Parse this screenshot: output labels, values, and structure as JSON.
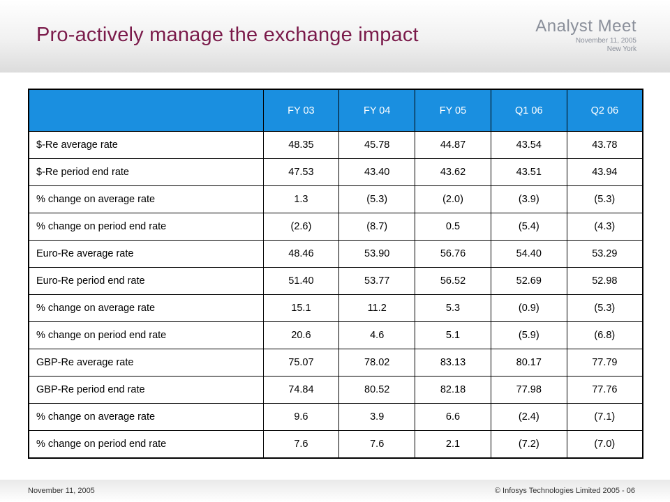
{
  "slide": {
    "title": "Pro-actively manage the exchange impact"
  },
  "brand": {
    "name": "Analyst Meet",
    "date": "November 11, 2005",
    "place": "New York"
  },
  "table": {
    "columns": [
      "",
      "FY 03",
      "FY 04",
      "FY 05",
      "Q1 06",
      "Q2 06"
    ],
    "rows": [
      {
        "label": "$-Re average rate",
        "values": [
          "48.35",
          "45.78",
          "44.87",
          "43.54",
          "43.78"
        ]
      },
      {
        "label": "$-Re period end rate",
        "values": [
          "47.53",
          "43.40",
          "43.62",
          "43.51",
          "43.94"
        ]
      },
      {
        "label": "% change on average rate",
        "values": [
          "1.3",
          "(5.3)",
          "(2.0)",
          "(3.9)",
          "(5.3)"
        ]
      },
      {
        "label": "% change on period end rate",
        "values": [
          "(2.6)",
          "(8.7)",
          "0.5",
          "(5.4)",
          "(4.3)"
        ]
      },
      {
        "label": "Euro-Re average rate",
        "values": [
          "48.46",
          "53.90",
          "56.76",
          "54.40",
          "53.29"
        ]
      },
      {
        "label": "Euro-Re period end rate",
        "values": [
          "51.40",
          "53.77",
          "56.52",
          "52.69",
          "52.98"
        ]
      },
      {
        "label": "% change on average rate",
        "values": [
          "15.1",
          "11.2",
          "5.3",
          "(0.9)",
          "(5.3)"
        ]
      },
      {
        "label": "% change on period end rate",
        "values": [
          "20.6",
          "4.6",
          "5.1",
          "(5.9)",
          "(6.8)"
        ]
      },
      {
        "label": "GBP-Re average rate",
        "values": [
          "75.07",
          "78.02",
          "83.13",
          "80.17",
          "77.79"
        ]
      },
      {
        "label": "GBP-Re period end rate",
        "values": [
          "74.84",
          "80.52",
          "82.18",
          "77.98",
          "77.76"
        ]
      },
      {
        "label": "% change on average rate",
        "values": [
          "9.6",
          "3.9",
          "6.6",
          "(2.4)",
          "(7.1)"
        ]
      },
      {
        "label": "% change on period end rate",
        "values": [
          "7.6",
          "7.6",
          "2.1",
          "(7.2)",
          "(7.0)"
        ]
      }
    ]
  },
  "footer": {
    "date": "November 11, 2005",
    "copyright": "© Infosys Technologies Limited 2005 - 06"
  },
  "colors": {
    "title": "#7a1a4a",
    "header_fill": "#1a8fe0",
    "brand_text": "#8a8f9a"
  }
}
